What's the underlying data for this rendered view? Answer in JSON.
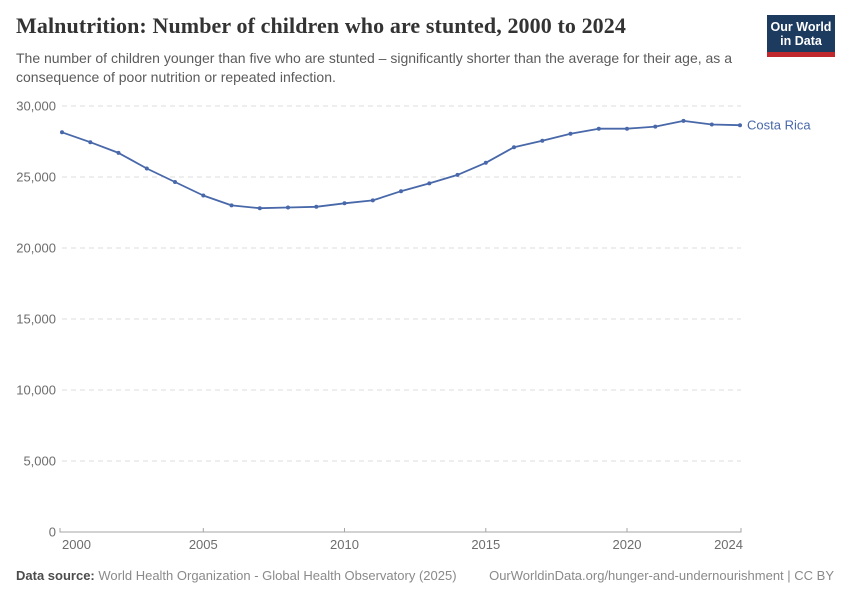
{
  "header": {
    "title": "Malnutrition: Number of children who are stunted, 2000 to 2024",
    "subtitle_line1": "The number of children younger than five who are stunted – significantly shorter than the average for their age,",
    "subtitle_line2": "as a consequence of poor nutrition or repeated infection."
  },
  "logo": {
    "line1": "Our World",
    "line2": "in Data",
    "bg_color": "#1d3a5f",
    "accent_color": "#c0282d"
  },
  "chart_data": {
    "type": "line",
    "title": "Malnutrition: Number of children who are stunted, 2000 to 2024",
    "x": [
      2000,
      2001,
      2002,
      2003,
      2004,
      2005,
      2006,
      2007,
      2008,
      2009,
      2010,
      2011,
      2012,
      2013,
      2014,
      2015,
      2016,
      2017,
      2018,
      2019,
      2020,
      2021,
      2022,
      2023,
      2024
    ],
    "series": [
      {
        "name": "Costa Rica",
        "color": "#4868a9",
        "values": [
          28150,
          27450,
          26700,
          25600,
          24650,
          23700,
          23000,
          22800,
          22850,
          22900,
          23150,
          23350,
          24000,
          24550,
          25150,
          26000,
          27100,
          27550,
          28050,
          28400,
          28400,
          28550,
          28950,
          28700,
          28650
        ]
      }
    ],
    "xlabel": "",
    "ylabel": "",
    "ylim": [
      0,
      30000
    ],
    "xlim": [
      2000,
      2024
    ],
    "yticks": [
      0,
      5000,
      10000,
      15000,
      20000,
      25000,
      30000
    ],
    "xticks": [
      2000,
      2005,
      2010,
      2015,
      2020,
      2024
    ],
    "grid": "horizontal-dashed",
    "legend_position": "end-of-line"
  },
  "footer": {
    "datasource_label": "Data source:",
    "datasource_text": "World Health Organization - Global Health Observatory (2025)",
    "url_license": "OurWorldinData.org/hunger-and-undernourishment | CC BY"
  }
}
